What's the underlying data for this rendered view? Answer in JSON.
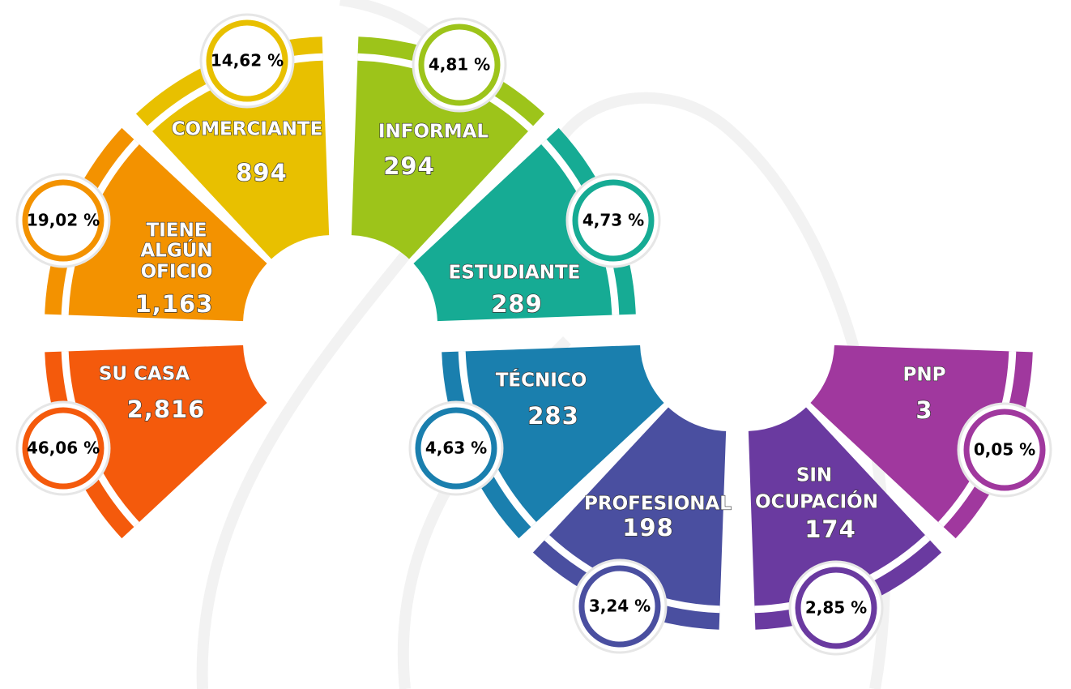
{
  "segments": [
    {
      "label": [
        "COMERCIANTE"
      ],
      "count": "894",
      "percent": "14,62 %"
    },
    {
      "label": [
        "TIENE",
        "ALGÚN",
        "OFICIO"
      ],
      "count": "1,163",
      "percent": "19,02 %"
    },
    {
      "label": [
        "SU CASA"
      ],
      "count": "2,816",
      "percent": "46,06 %"
    },
    {
      "label": [
        "INFORMAL"
      ],
      "count": "294",
      "percent": "4,81 %"
    },
    {
      "label": [
        "ESTUDIANTE"
      ],
      "count": "289",
      "percent": "4,73 %"
    },
    {
      "label": [
        "TÉCNICO"
      ],
      "count": "283",
      "percent": "4,63 %"
    },
    {
      "label": [
        "PROFESIONAL"
      ],
      "count": "198",
      "percent": "3,24 %"
    },
    {
      "label": [
        "SIN",
        "OCUPACIÓN"
      ],
      "count": "174",
      "percent": "2,85 %"
    },
    {
      "label": [
        "PNP"
      ],
      "count": "3",
      "percent": "0,05 %"
    }
  ]
}
